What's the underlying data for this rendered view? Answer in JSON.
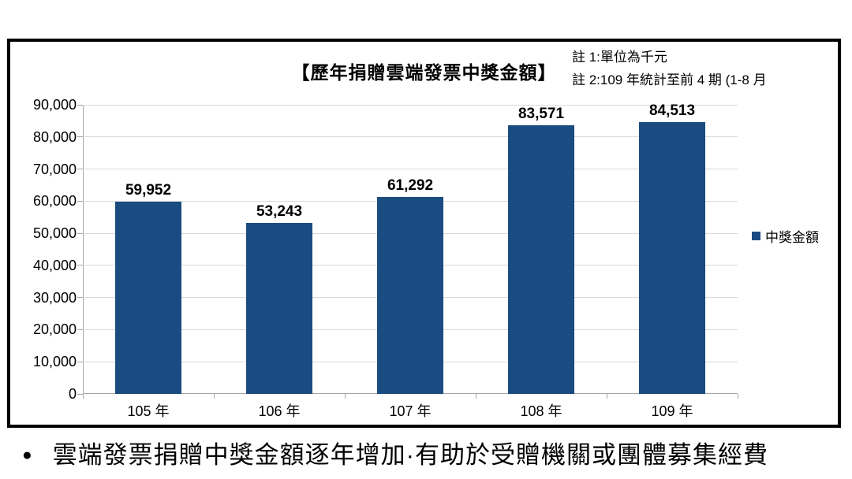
{
  "chart": {
    "notes": [
      "註 1:單位為千元",
      "註 2:109 年統計至前 4 期 (1-8 月"
    ],
    "colors": {
      "bar": "#1B4C81",
      "gridline": "#D9D9D9",
      "axis": "#A6A6A6",
      "border": "#000000"
    }
  },
  "chart_data": {
    "type": "bar",
    "title": "【歷年捐贈雲端發票中獎金額】",
    "categories": [
      "105 年",
      "106 年",
      "107 年",
      "108 年",
      "109 年"
    ],
    "values": [
      59952,
      53243,
      61292,
      83571,
      84513
    ],
    "value_labels": [
      "59,952",
      "53,243",
      "61,292",
      "83,571",
      "84,513"
    ],
    "series_name": "中獎金額",
    "legend": [
      "中獎金額"
    ],
    "legend_position": "right",
    "ylim": [
      0,
      90000
    ],
    "ytick_step": 10000,
    "ytick_labels": [
      "0",
      "10,000",
      "20,000",
      "30,000",
      "40,000",
      "50,000",
      "60,000",
      "70,000",
      "80,000",
      "90,000"
    ],
    "grid": true,
    "xlabel": "",
    "ylabel": "",
    "notes": [
      "註 1:單位為千元",
      "註 2:109 年統計至前 4 期 (1-8 月"
    ]
  },
  "footer": {
    "bullet": "●",
    "text": "雲端發票捐贈中獎金額逐年增加·有助於受贈機關或團體募集經費"
  }
}
